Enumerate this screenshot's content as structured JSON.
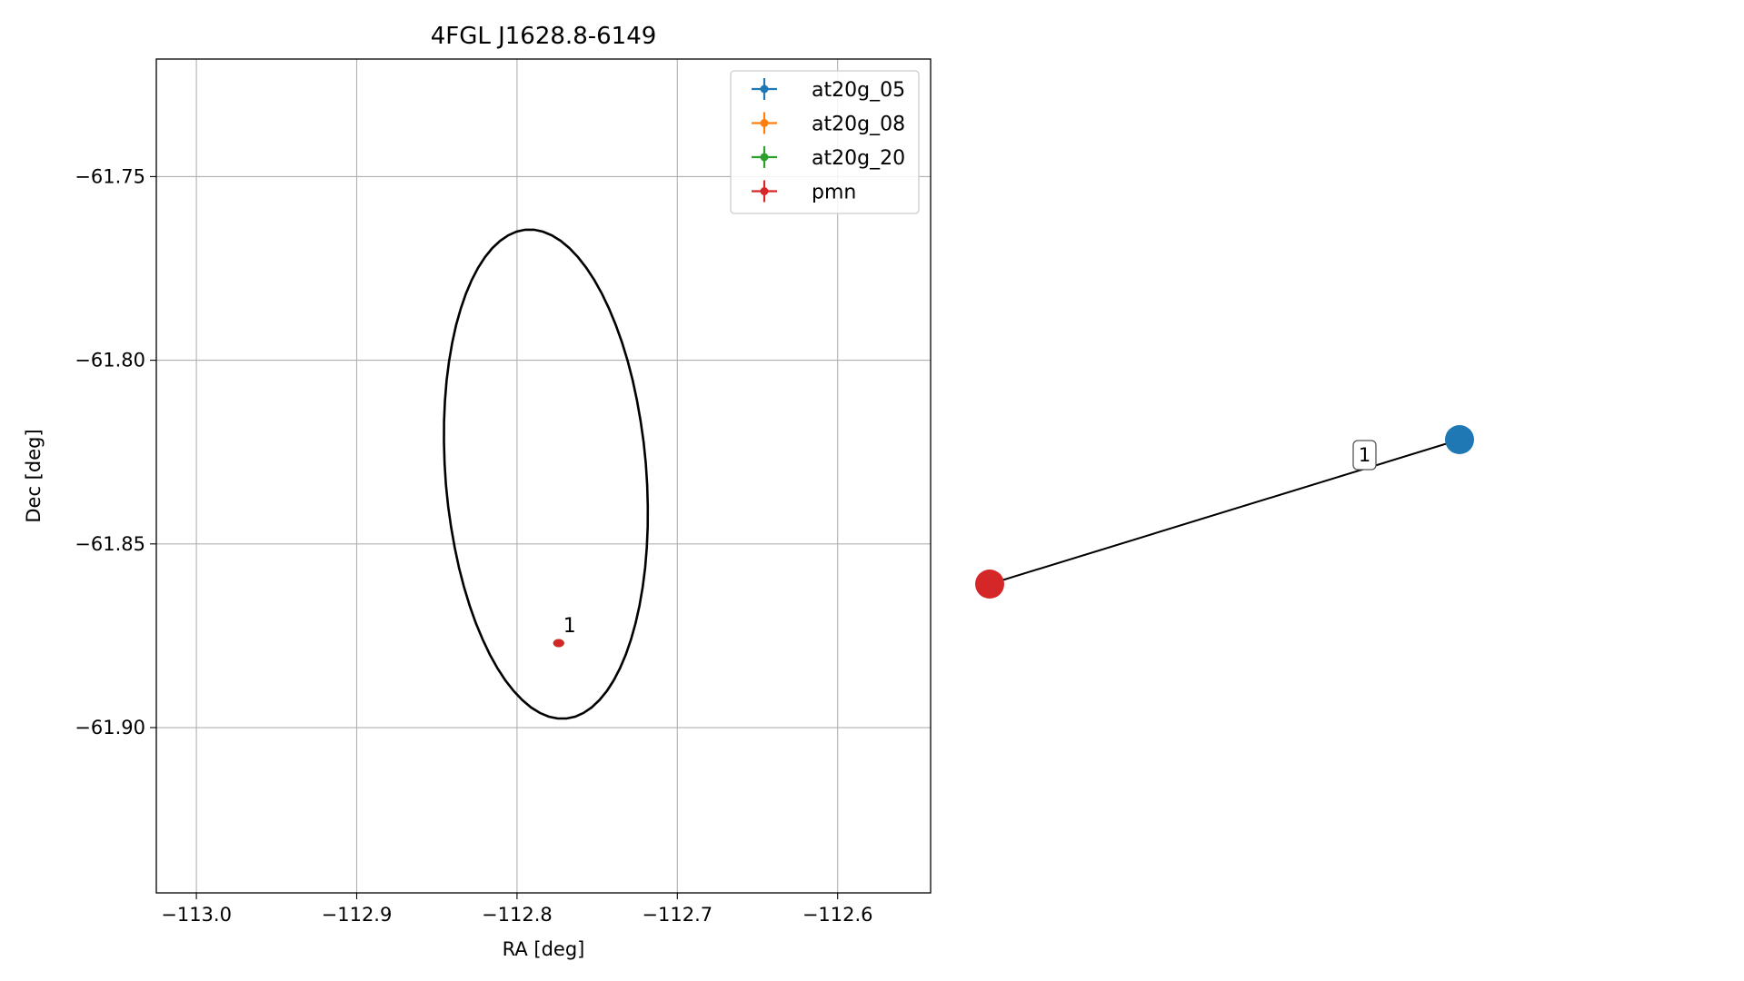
{
  "chart_data": [
    {
      "type": "scatter",
      "title": "4FGL J1628.8-6149",
      "xlabel": "RA [deg]",
      "ylabel": "Dec [deg]",
      "xlim": [
        -113.025,
        -112.542
      ],
      "ylim": [
        -61.945,
        -61.718
      ],
      "x_ticks": [
        -113.0,
        -112.9,
        -112.8,
        -112.7,
        -112.6
      ],
      "x_tick_labels": [
        "−113.0",
        "−112.9",
        "−112.8",
        "−112.7",
        "−112.6"
      ],
      "y_ticks": [
        -61.75,
        -61.8,
        -61.85,
        -61.9
      ],
      "y_tick_labels": [
        "−61.75",
        "−61.80",
        "−61.85",
        "−61.90"
      ],
      "grid": true,
      "legend_position": "top-right",
      "series": [
        {
          "name": "at20g_05",
          "color": "#1f77b4",
          "x": [
            -112.774
          ],
          "y": [
            -61.877
          ]
        },
        {
          "name": "at20g_08",
          "color": "#ff7f0e",
          "x": [
            -112.774
          ],
          "y": [
            -61.877
          ]
        },
        {
          "name": "at20g_20",
          "color": "#2ca02c",
          "x": [
            -112.774
          ],
          "y": [
            -61.877
          ]
        },
        {
          "name": "pmn",
          "color": "#d62728",
          "x": [
            -112.774
          ],
          "y": [
            -61.877
          ]
        }
      ],
      "annotations": [
        {
          "text": "1",
          "x": -112.774,
          "y": -61.877
        }
      ],
      "ellipse": {
        "color": "#000000",
        "center_ra": -112.782,
        "center_dec": -61.831,
        "semi_axis_a_deg": 0.0703,
        "semi_axis_b_deg": 0.0595,
        "rotation_deg": -53
      }
    },
    {
      "type": "network",
      "nodes": [
        {
          "id": "pmn",
          "color": "#d62728"
        },
        {
          "id": "at20g",
          "color": "#1f77b4"
        }
      ],
      "edges": [
        {
          "source": "pmn",
          "target": "at20g",
          "label": "1"
        }
      ]
    }
  ]
}
